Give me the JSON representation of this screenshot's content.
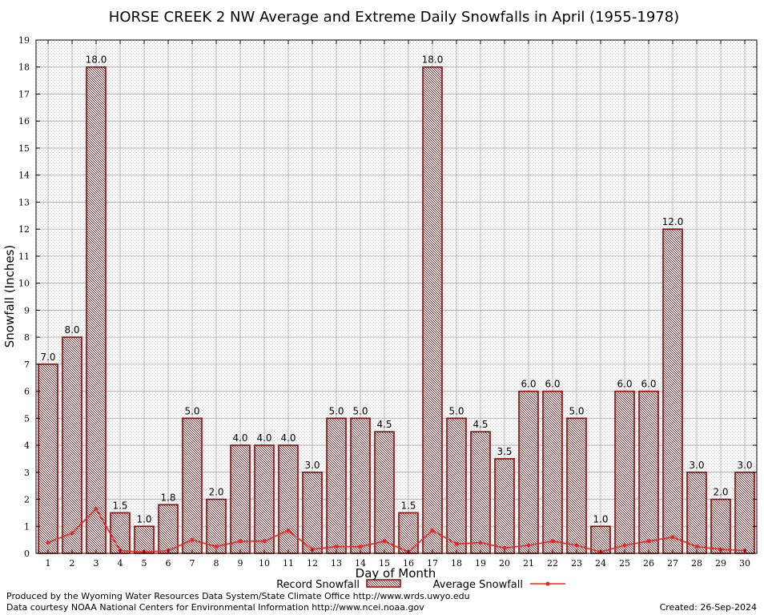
{
  "chart_data": {
    "type": "bar",
    "title": "HORSE CREEK 2 NW Average and Extreme Daily Snowfalls in April (1955-1978)",
    "xlabel": "Day of Month",
    "ylabel": "Snowfall (Inches)",
    "ylim": [
      0,
      19
    ],
    "yticks": [
      0,
      1,
      2,
      3,
      4,
      5,
      6,
      7,
      8,
      9,
      10,
      11,
      12,
      13,
      14,
      15,
      16,
      17,
      18,
      19
    ],
    "grid": true,
    "legend_position": "bottom",
    "categories": [
      "1",
      "2",
      "3",
      "4",
      "5",
      "6",
      "7",
      "8",
      "9",
      "10",
      "11",
      "12",
      "13",
      "14",
      "15",
      "16",
      "17",
      "18",
      "19",
      "20",
      "21",
      "22",
      "23",
      "24",
      "25",
      "26",
      "27",
      "28",
      "29",
      "30"
    ],
    "series": [
      {
        "name": "Record Snowfall",
        "kind": "bar",
        "color": "#990000",
        "values": [
          7.0,
          8.0,
          18.0,
          1.5,
          1.0,
          1.8,
          5.0,
          2.0,
          4.0,
          4.0,
          4.0,
          3.0,
          5.0,
          5.0,
          4.5,
          1.5,
          18.0,
          5.0,
          4.5,
          3.5,
          6.0,
          6.0,
          5.0,
          1.0,
          6.0,
          6.0,
          12.0,
          3.0,
          2.0,
          3.0
        ],
        "labels": [
          "7.0",
          "8.0",
          "18.0",
          "1.5",
          "1.0",
          "1.8",
          "5.0",
          "2.0",
          "4.0",
          "4.0",
          "4.0",
          "3.0",
          "5.0",
          "5.0",
          "4.5",
          "1.5",
          "18.0",
          "5.0",
          "4.5",
          "3.5",
          "6.0",
          "6.0",
          "5.0",
          "1.0",
          "6.0",
          "6.0",
          "12.0",
          "3.0",
          "2.0",
          "3.0"
        ]
      },
      {
        "name": "Average Snowfall",
        "kind": "line",
        "color": "#ee2222",
        "values": [
          0.4,
          0.75,
          1.65,
          0.1,
          0.05,
          0.1,
          0.5,
          0.25,
          0.45,
          0.45,
          0.85,
          0.15,
          0.25,
          0.25,
          0.45,
          0.05,
          0.85,
          0.35,
          0.4,
          0.2,
          0.3,
          0.45,
          0.3,
          0.05,
          0.3,
          0.45,
          0.6,
          0.25,
          0.15,
          0.1
        ]
      }
    ]
  },
  "footer": {
    "credit1": "Produced by the Wyoming Water Resources Data System/State Climate Office http://www.wrds.uwyo.edu",
    "credit2": "Data courtesy NOAA National Centers for Environmental Information http://www.ncei.noaa.gov",
    "created": "Created:  26-Sep-2024"
  }
}
